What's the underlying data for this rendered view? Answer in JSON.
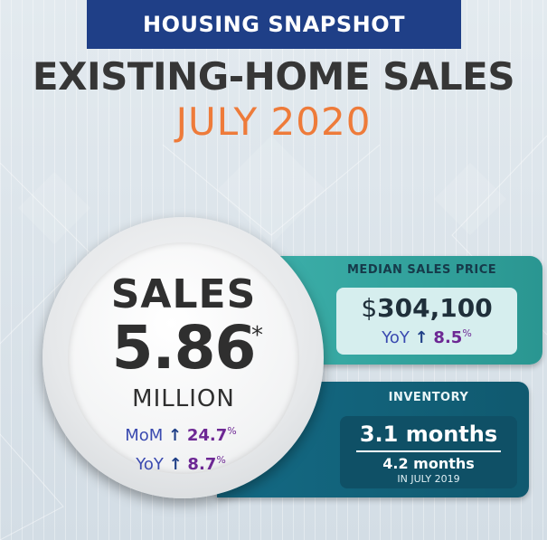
{
  "header": {
    "banner_text": "HOUSING SNAPSHOT",
    "title": "EXISTING-HOME SALES",
    "subtitle": "JULY 2020"
  },
  "sales": {
    "label": "SALES",
    "value": "5.86",
    "asterisk": "*",
    "unit": "MILLION",
    "mom": {
      "label": "MoM",
      "arrow": "↑",
      "value": "24.7",
      "unit": "%"
    },
    "yoy": {
      "label": "YoY",
      "arrow": "↑",
      "value": "8.7",
      "unit": "%"
    }
  },
  "median_price": {
    "label": "MEDIAN SALES PRICE",
    "currency": "$",
    "value": "304,100",
    "yoy": {
      "label": "YoY",
      "arrow": "↑",
      "value": "8.5",
      "unit": "%"
    }
  },
  "inventory": {
    "label": "INVENTORY",
    "current": "3.1 months",
    "previous": "4.2 months",
    "previous_period": "IN JULY 2019"
  },
  "colors": {
    "banner": "#1f3f87",
    "title": "#363636",
    "subtitle": "#ee7b3a",
    "teal": "#3fb3ad",
    "navy_teal": "#146a84",
    "purple": "#6d2894",
    "blue_text": "#3a4ab0"
  },
  "icons": [
    "up-arrow-icon"
  ]
}
